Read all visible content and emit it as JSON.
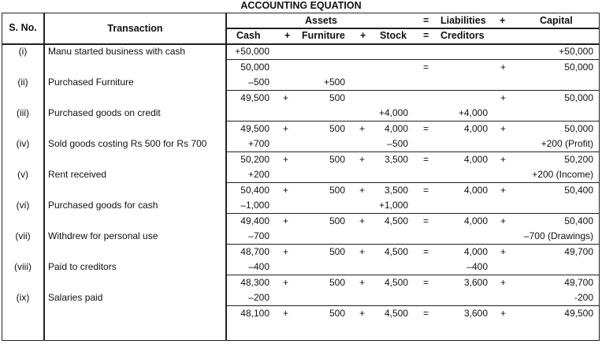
{
  "title": "ACCOUNTING EQUATION",
  "header": {
    "sno": "S. No.",
    "transaction": "Transaction",
    "assets": "Assets",
    "eq": "=",
    "liabilities": "Liabilities",
    "plus": "+",
    "capital": "Capital",
    "cash": "Cash",
    "plus1": "+",
    "furniture": "Furniture",
    "plus2": "+",
    "stock": "Stock",
    "eq2": "=",
    "creditors": "Creditors"
  },
  "lines": [
    {
      "sno": "(i)",
      "transaction": "Manu started business with cash",
      "cash": "+50,000",
      "capital": "+50,000"
    },
    {
      "cash": "50,000",
      "eq": "=",
      "op3": "+",
      "capital": "50,000"
    },
    {
      "sno": "(ii)",
      "transaction": "Purchased Furniture",
      "cash": "–500",
      "furniture": "+500"
    },
    {
      "cash": "49,500",
      "op1": "+",
      "furniture": "500",
      "op3": "+",
      "capital": "50,000"
    },
    {
      "sno": "(iii)",
      "transaction": "Purchased goods on credit",
      "stock": "+4,000",
      "creditors": "+4,000"
    },
    {
      "cash": "49,500",
      "op1": "+",
      "furniture": "500",
      "op2": "+",
      "stock": "4,000",
      "eq": "=",
      "creditors": "4,000",
      "op3": "+",
      "capital": "50,000"
    },
    {
      "sno": "(iv)",
      "transaction": "Sold goods costing Rs 500 for Rs 700",
      "cash": "+700",
      "stock": "–500",
      "capital": "+200 (Profit)"
    },
    {
      "cash": "50,200",
      "op1": "+",
      "furniture": "500",
      "op2": "+",
      "stock": "3,500",
      "eq": "=",
      "creditors": "4,000",
      "op3": "+",
      "capital": "50,200"
    },
    {
      "sno": "(v)",
      "transaction": "Rent received",
      "cash": "+200",
      "capital": "+200 (Income)"
    },
    {
      "cash": "50,400",
      "op1": "+",
      "furniture": "500",
      "op2": "+",
      "stock": "3,500",
      "eq": "=",
      "creditors": "4,000",
      "op3": "+",
      "capital": "50,400"
    },
    {
      "sno": "(vi)",
      "transaction": "Purchased goods for cash",
      "cash": "–1,000",
      "stock": "+1,000"
    },
    {
      "cash": "49,400",
      "op1": "+",
      "furniture": "500",
      "op2": "+",
      "stock": "4,500",
      "eq": "=",
      "creditors": "4,000",
      "op3": "+",
      "capital": "50,400"
    },
    {
      "sno": "(vii)",
      "transaction": "Withdrew for personal use",
      "cash": "–700",
      "capital": "–700 (Drawings)"
    },
    {
      "cash": "48,700",
      "op1": "+",
      "furniture": "500",
      "op2": "+",
      "stock": "4,500",
      "eq": "=",
      "creditors": "4,000",
      "op3": "+",
      "capital": "49,700"
    },
    {
      "sno": "(viii)",
      "transaction": "Paid to creditors",
      "cash": "–400",
      "creditors": "–400"
    },
    {
      "cash": "48,300",
      "op1": "+",
      "furniture": "500",
      "op2": "+",
      "stock": "4,500",
      "eq": "=",
      "creditors": "3,600",
      "op3": "+",
      "capital": "49,700"
    },
    {
      "sno": "(ix)",
      "transaction": "Salaries paid",
      "cash": "–200",
      "capital": "-200"
    },
    {
      "cash": "48,100",
      "op1": "+",
      "furniture": "500",
      "op2": "+",
      "stock": "4,500",
      "eq": "=",
      "creditors": "3,600",
      "op3": "+",
      "capital": "49,500"
    }
  ]
}
